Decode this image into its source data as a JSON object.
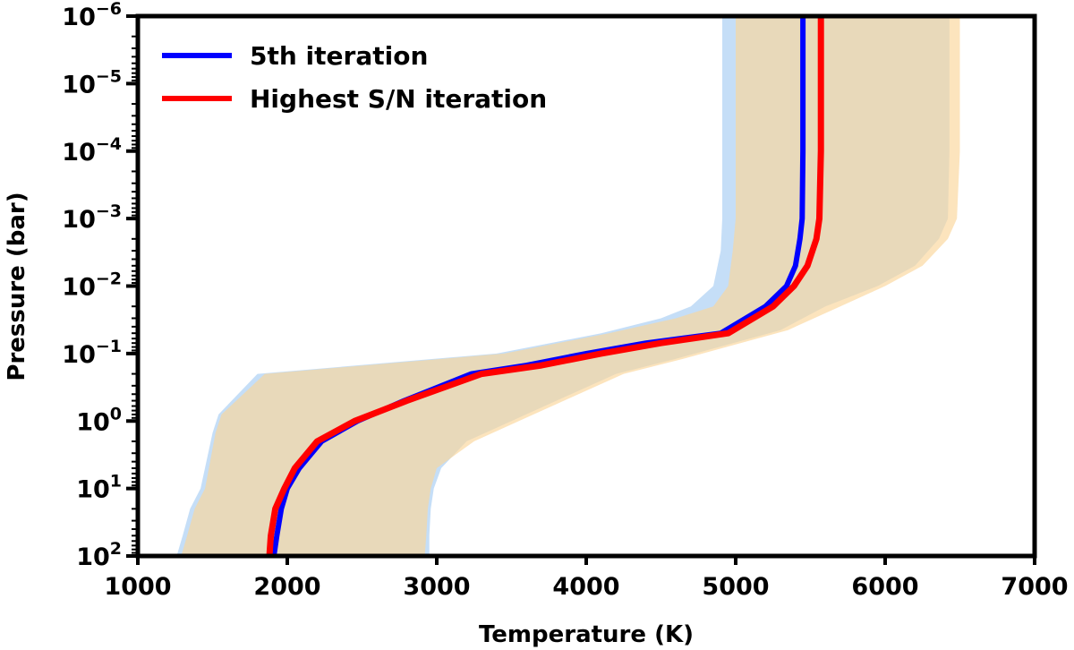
{
  "chart_data": {
    "type": "line",
    "xlabel": "Temperature (K)",
    "ylabel": "Pressure (bar)",
    "xlim": [
      1000,
      7000
    ],
    "ylim": [
      100,
      1e-06
    ],
    "y_scale": "log",
    "y_inverted": true,
    "grid": false,
    "legend_position": "top-left",
    "x_ticks": [
      {
        "value": 1000,
        "label": "1000"
      },
      {
        "value": 2000,
        "label": "2000"
      },
      {
        "value": 3000,
        "label": "3000"
      },
      {
        "value": 4000,
        "label": "4000"
      },
      {
        "value": 5000,
        "label": "5000"
      },
      {
        "value": 6000,
        "label": "6000"
      },
      {
        "value": 7000,
        "label": "7000"
      }
    ],
    "y_ticks": [
      {
        "value": 1e-06,
        "base": "10",
        "exp": "−6"
      },
      {
        "value": 1e-05,
        "base": "10",
        "exp": "−5"
      },
      {
        "value": 0.0001,
        "base": "10",
        "exp": "−4"
      },
      {
        "value": 0.001,
        "base": "10",
        "exp": "−3"
      },
      {
        "value": 0.01,
        "base": "10",
        "exp": "−2"
      },
      {
        "value": 0.1,
        "base": "10",
        "exp": "−1"
      },
      {
        "value": 1,
        "base": "10",
        "exp": "0"
      },
      {
        "value": 10,
        "base": "10",
        "exp": "1"
      },
      {
        "value": 100,
        "base": "10",
        "exp": "2"
      }
    ],
    "series": [
      {
        "name": "5th iteration",
        "color": "#0000ff",
        "band_color": "#a6cdf2",
        "points": [
          [
            1910,
            100
          ],
          [
            1930,
            50
          ],
          [
            1960,
            20
          ],
          [
            2000,
            10
          ],
          [
            2080,
            5
          ],
          [
            2230,
            2
          ],
          [
            2470,
            1
          ],
          [
            2780,
            0.5
          ],
          [
            3230,
            0.2
          ],
          [
            3600,
            0.15
          ],
          [
            4000,
            0.1
          ],
          [
            4400,
            0.07
          ],
          [
            4900,
            0.05
          ],
          [
            5200,
            0.02
          ],
          [
            5340,
            0.01
          ],
          [
            5400,
            0.005
          ],
          [
            5430,
            0.002
          ],
          [
            5445,
            0.001
          ],
          [
            5450,
            0.0001
          ],
          [
            5450,
            1e-05
          ],
          [
            5450,
            1e-06
          ]
        ],
        "band_lower": [
          [
            2950,
            100
          ],
          [
            2950,
            50
          ],
          [
            2960,
            20
          ],
          [
            2980,
            10
          ],
          [
            3030,
            5
          ],
          [
            3200,
            2
          ],
          [
            3500,
            1
          ],
          [
            3800,
            0.5
          ],
          [
            4200,
            0.2
          ],
          [
            4600,
            0.12
          ],
          [
            5300,
            0.045
          ],
          [
            5600,
            0.02
          ],
          [
            5950,
            0.01
          ],
          [
            6200,
            0.005
          ],
          [
            6360,
            0.002
          ],
          [
            6420,
            0.001
          ],
          [
            6430,
            0.0001
          ],
          [
            6430,
            1e-05
          ],
          [
            6430,
            1e-06
          ]
        ],
        "band_upper": [
          [
            1260,
            100
          ],
          [
            1300,
            50
          ],
          [
            1350,
            20
          ],
          [
            1420,
            10
          ],
          [
            1500,
            1.5
          ],
          [
            1540,
            0.8
          ],
          [
            1800,
            0.2
          ],
          [
            3400,
            0.1
          ],
          [
            4100,
            0.05
          ],
          [
            4500,
            0.03
          ],
          [
            4700,
            0.02
          ],
          [
            4850,
            0.01
          ],
          [
            4900,
            0.003
          ],
          [
            4910,
            0.001
          ],
          [
            4910,
            0.0001
          ],
          [
            4910,
            1e-05
          ],
          [
            4910,
            1e-06
          ]
        ]
      },
      {
        "name": "Highest S/N iteration",
        "color": "#ff0000",
        "band_color": "#fbd59a",
        "points": [
          [
            1880,
            100
          ],
          [
            1890,
            50
          ],
          [
            1920,
            20
          ],
          [
            1980,
            10
          ],
          [
            2050,
            5
          ],
          [
            2200,
            2
          ],
          [
            2450,
            1
          ],
          [
            2800,
            0.5
          ],
          [
            3300,
            0.2
          ],
          [
            3700,
            0.15
          ],
          [
            4100,
            0.1
          ],
          [
            4500,
            0.07
          ],
          [
            4950,
            0.05
          ],
          [
            5250,
            0.02
          ],
          [
            5390,
            0.01
          ],
          [
            5480,
            0.005
          ],
          [
            5540,
            0.002
          ],
          [
            5560,
            0.001
          ],
          [
            5570,
            0.0001
          ],
          [
            5570,
            1e-05
          ],
          [
            5570,
            1e-06
          ]
        ],
        "band_lower": [
          [
            2920,
            100
          ],
          [
            2930,
            50
          ],
          [
            2940,
            20
          ],
          [
            2960,
            10
          ],
          [
            3000,
            5
          ],
          [
            3250,
            2
          ],
          [
            3550,
            1
          ],
          [
            3850,
            0.5
          ],
          [
            4250,
            0.2
          ],
          [
            4650,
            0.12
          ],
          [
            5350,
            0.045
          ],
          [
            5700,
            0.02
          ],
          [
            6000,
            0.01
          ],
          [
            6250,
            0.005
          ],
          [
            6420,
            0.002
          ],
          [
            6480,
            0.001
          ],
          [
            6500,
            0.0001
          ],
          [
            6500,
            1e-05
          ],
          [
            6500,
            1e-06
          ]
        ],
        "band_upper": [
          [
            1290,
            100
          ],
          [
            1330,
            50
          ],
          [
            1380,
            20
          ],
          [
            1450,
            10
          ],
          [
            1520,
            1.5
          ],
          [
            1560,
            0.8
          ],
          [
            1850,
            0.2
          ],
          [
            3450,
            0.1
          ],
          [
            4150,
            0.05
          ],
          [
            4600,
            0.03
          ],
          [
            4850,
            0.02
          ],
          [
            4950,
            0.01
          ],
          [
            4980,
            0.003
          ],
          [
            5000,
            0.001
          ],
          [
            5000,
            0.0001
          ],
          [
            5000,
            1e-05
          ],
          [
            5000,
            1e-06
          ]
        ]
      }
    ]
  }
}
